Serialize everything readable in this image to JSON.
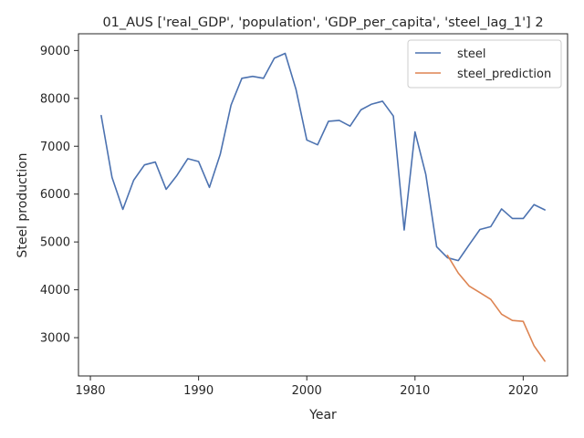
{
  "chart_data": {
    "type": "line",
    "title": "01_AUS ['real_GDP', 'population', 'GDP_per_capita', 'steel_lag_1'] 2",
    "xlabel": "Year",
    "ylabel": "Steel production",
    "xlim": [
      1978.9,
      2024.1
    ],
    "ylim": [
      2200,
      9350
    ],
    "xticks": [
      1980,
      1990,
      2000,
      2010,
      2020
    ],
    "yticks": [
      3000,
      4000,
      5000,
      6000,
      7000,
      8000,
      9000
    ],
    "legend_position": "top-right",
    "grid": false,
    "series": [
      {
        "name": "steel",
        "color": "#4c72b0",
        "x": [
          1981,
          1982,
          1983,
          1984,
          1985,
          1986,
          1987,
          1988,
          1989,
          1990,
          1991,
          1992,
          1993,
          1994,
          1995,
          1996,
          1997,
          1998,
          1999,
          2000,
          2001,
          2002,
          2003,
          2004,
          2005,
          2006,
          2007,
          2008,
          2009,
          2010,
          2011,
          2012,
          2013,
          2014,
          2015,
          2016,
          2017,
          2018,
          2019,
          2020,
          2021,
          2022
        ],
        "y": [
          7640,
          6350,
          5680,
          6290,
          6610,
          6670,
          6100,
          6390,
          6740,
          6680,
          6140,
          6830,
          7860,
          8420,
          8460,
          8420,
          8840,
          8940,
          8190,
          7130,
          7030,
          7520,
          7540,
          7420,
          7760,
          7880,
          7940,
          7630,
          5250,
          7300,
          6410,
          4900,
          4670,
          4610,
          4940,
          5260,
          5320,
          5690,
          5490,
          5490,
          5780,
          5670
        ]
      },
      {
        "name": "steel_prediction",
        "color": "#dd8452",
        "x": [
          2013,
          2014,
          2015,
          2016,
          2017,
          2018,
          2019,
          2020,
          2021,
          2022
        ],
        "y": [
          4720,
          4350,
          4080,
          3940,
          3800,
          3490,
          3360,
          3340,
          2830,
          2510
        ]
      }
    ]
  }
}
